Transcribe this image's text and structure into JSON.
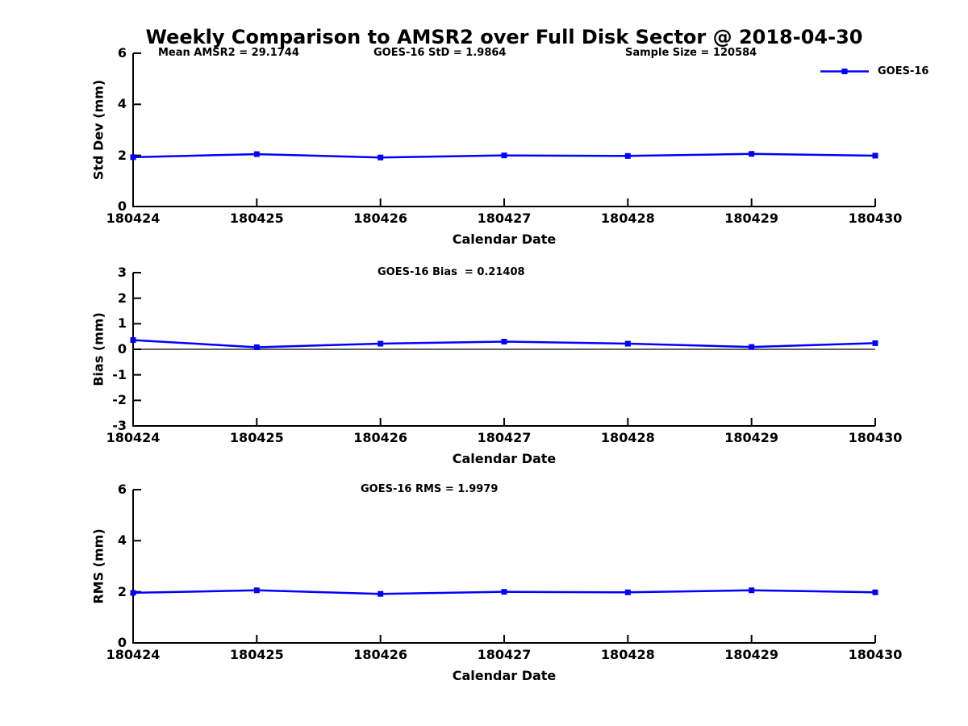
{
  "title": "Weekly Comparison to AMSR2 over Full Disk Sector @ 2018-04-30",
  "colors": {
    "line": "#0000FF",
    "axis": "#000000",
    "text": "#000000",
    "background": "#FFFFFF"
  },
  "legend": {
    "label": "GOES-16"
  },
  "chart_data": [
    {
      "type": "line",
      "ylabel": "Std Dev (mm)",
      "xlabel": "Calendar Date",
      "categories": [
        "180424",
        "180425",
        "180426",
        "180427",
        "180428",
        "180429",
        "180430"
      ],
      "yticks": [
        "0",
        "2",
        "4",
        "6"
      ],
      "ylim": [
        0,
        6
      ],
      "grid": false,
      "legend_position": "top-right",
      "series": [
        {
          "name": "GOES-16",
          "values": [
            1.93,
            2.05,
            1.92,
            2.0,
            1.98,
            2.06,
            1.99
          ]
        }
      ],
      "annotations": [
        "Mean AMSR2 = 29.1744",
        "GOES-16 StD = 1.9864",
        "Sample Size = 120584"
      ]
    },
    {
      "type": "line",
      "ylabel": "Bias (mm)",
      "xlabel": "Calendar Date",
      "categories": [
        "180424",
        "180425",
        "180426",
        "180427",
        "180428",
        "180429",
        "180430"
      ],
      "yticks": [
        "3",
        "2",
        "1",
        "0",
        "-1",
        "-2",
        "-3"
      ],
      "ylim": [
        -3,
        3
      ],
      "grid": false,
      "zero_line": true,
      "series": [
        {
          "name": "GOES-16",
          "values": [
            0.36,
            0.08,
            0.22,
            0.3,
            0.22,
            0.09,
            0.24
          ]
        }
      ],
      "annotations": [
        "GOES-16 Bias  = 0.21408"
      ]
    },
    {
      "type": "line",
      "ylabel": "RMS (mm)",
      "xlabel": "Calendar Date",
      "categories": [
        "180424",
        "180425",
        "180426",
        "180427",
        "180428",
        "180429",
        "180430"
      ],
      "yticks": [
        "0",
        "2",
        "4",
        "6"
      ],
      "ylim": [
        0,
        6
      ],
      "grid": false,
      "series": [
        {
          "name": "GOES-16",
          "values": [
            1.96,
            2.06,
            1.92,
            2.0,
            1.98,
            2.06,
            1.98
          ]
        }
      ],
      "annotations": [
        "GOES-16 RMS = 1.9979"
      ]
    }
  ]
}
